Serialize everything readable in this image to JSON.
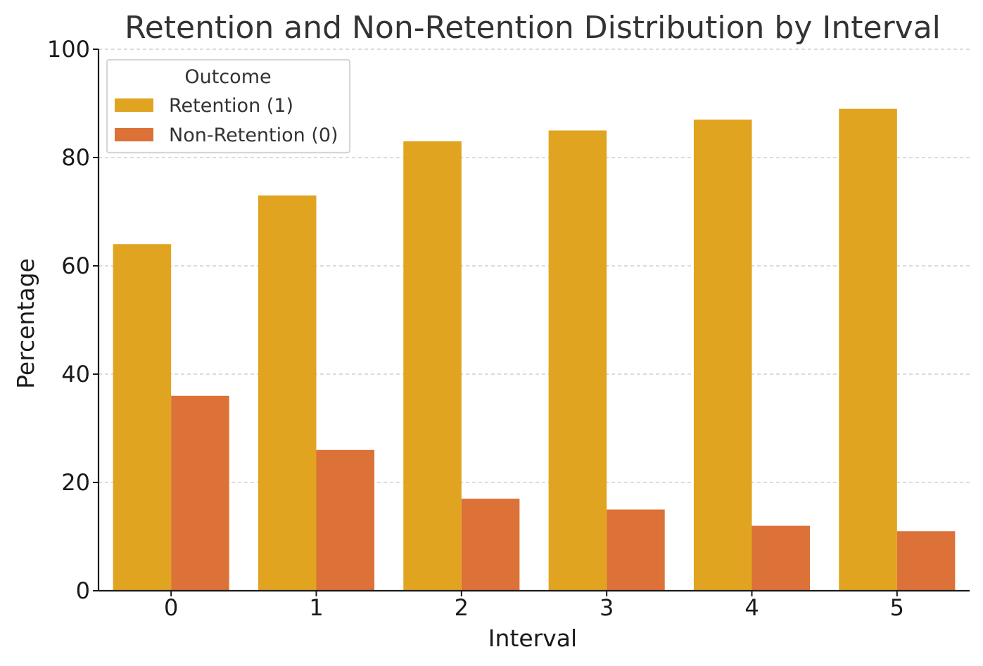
{
  "chart_data": {
    "type": "bar",
    "title": "Retention and Non-Retention Distribution by Interval",
    "xlabel": "Interval",
    "ylabel": "Percentage",
    "categories": [
      "0",
      "1",
      "2",
      "3",
      "4",
      "5"
    ],
    "series": [
      {
        "name": "Retention (1)",
        "color": "#E0A420",
        "values": [
          64,
          73,
          83,
          85,
          87,
          89
        ]
      },
      {
        "name": "Non-Retention (0)",
        "color": "#DC7238",
        "values": [
          36,
          26,
          17,
          15,
          12,
          11
        ]
      }
    ],
    "ylim": [
      0,
      100
    ],
    "yticks": [
      0,
      20,
      40,
      60,
      80,
      100
    ],
    "grid": "y-dashed",
    "legend": {
      "title": "Outcome",
      "placement": "top-left"
    }
  }
}
